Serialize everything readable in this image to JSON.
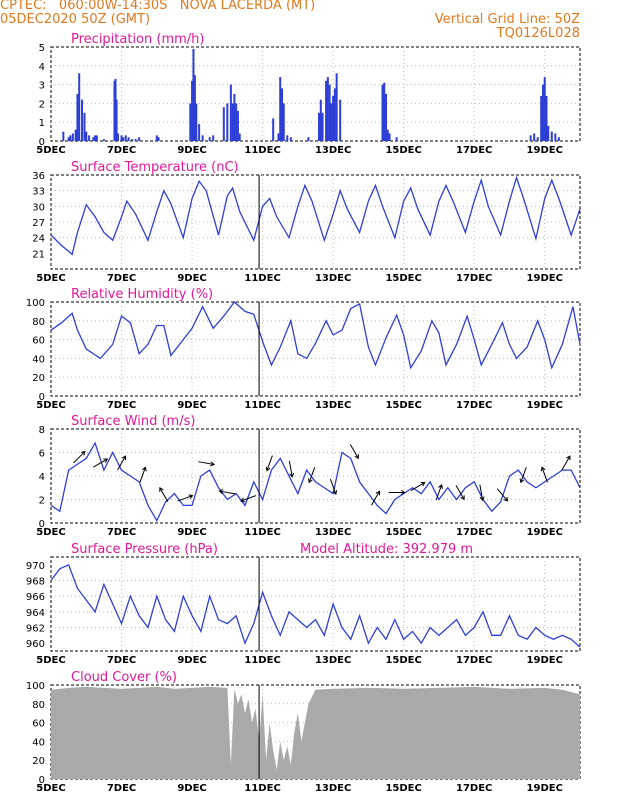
{
  "header": {
    "line1_left": "CPTEC:   060:00W-14:30S   NOVA LACERDA (MT)",
    "line2_left": "05DEC2020 50Z (GMT)",
    "line2_right": "Vertical Grid Line: 50Z",
    "line3_right": "TQ0126L028"
  },
  "colors": {
    "header": "#e07a1e",
    "title": "#e0199a",
    "series": "#2d3fd6",
    "cloud": "#a9a9a9"
  },
  "date_labels": [
    "5DEC",
    "7DEC",
    "9DEC",
    "11DEC",
    "13DEC",
    "15DEC",
    "17DEC",
    "19DEC"
  ],
  "chart_data": [
    {
      "id": "precip",
      "type": "bar",
      "title": "Precipitation (mm/h)",
      "ylim": [
        0,
        5
      ],
      "yticks": [
        "0",
        "1",
        "2",
        "3",
        "4",
        "5"
      ],
      "x_unit": "days since 5DEC 00Z",
      "x": [
        0.35,
        0.5,
        0.55,
        0.62,
        0.7,
        0.75,
        0.8,
        0.88,
        0.95,
        1.0,
        1.08,
        1.2,
        1.25,
        1.3,
        1.5,
        1.8,
        1.83,
        1.86,
        1.9,
        2.0,
        2.05,
        2.12,
        2.2,
        2.3,
        2.4,
        2.5,
        3.0,
        3.05,
        3.95,
        4.0,
        4.04,
        4.08,
        4.12,
        4.2,
        4.3,
        4.5,
        4.6,
        4.9,
        5.0,
        5.1,
        5.15,
        5.2,
        5.25,
        5.3,
        5.35,
        6.3,
        6.45,
        6.5,
        6.55,
        6.6,
        6.7,
        6.8,
        7.3,
        7.6,
        7.65,
        7.7,
        7.8,
        7.85,
        7.9,
        7.95,
        8.0,
        8.05,
        8.1,
        8.2,
        9.4,
        9.45,
        9.5,
        9.55,
        9.6,
        9.8,
        13.6,
        13.7,
        13.8,
        13.9,
        13.95,
        14.0,
        14.05,
        14.1,
        14.2,
        14.3,
        14.4
      ],
      "values": [
        0.5,
        0.2,
        0.3,
        0.4,
        0.6,
        2.5,
        3.6,
        2.2,
        1.5,
        0.5,
        0.3,
        0.2,
        0.3,
        0.3,
        0.1,
        3.2,
        3.3,
        2.2,
        0.4,
        0.3,
        0.2,
        0.3,
        0.2,
        0.1,
        0.1,
        0.2,
        0.3,
        0.2,
        2.0,
        3.2,
        4.9,
        3.5,
        2.0,
        0.9,
        0.3,
        0.2,
        0.3,
        1.8,
        2.0,
        3.0,
        2.0,
        2.5,
        2.0,
        1.6,
        0.4,
        1.2,
        0.4,
        3.4,
        2.8,
        2.0,
        0.3,
        0.2,
        0.2,
        1.5,
        2.2,
        1.5,
        3.2,
        3.4,
        3.0,
        2.0,
        2.4,
        2.8,
        3.6,
        2.2,
        3.0,
        3.1,
        2.5,
        0.6,
        0.4,
        0.2,
        0.3,
        0.4,
        0.2,
        2.4,
        3.0,
        3.4,
        2.4,
        0.8,
        0.5,
        0.4,
        0.2
      ]
    },
    {
      "id": "temp",
      "type": "line",
      "title": "Surface Temperature (nC)",
      "ylim": [
        18,
        36
      ],
      "yticks": [
        "21",
        "24",
        "27",
        "30",
        "33",
        "36"
      ],
      "x": [
        0,
        0.3,
        0.6,
        0.75,
        1.0,
        1.25,
        1.5,
        1.75,
        2.0,
        2.15,
        2.4,
        2.75,
        3.0,
        3.2,
        3.4,
        3.75,
        4.0,
        4.2,
        4.4,
        4.75,
        5.0,
        5.15,
        5.35,
        5.75,
        6.0,
        6.2,
        6.4,
        6.75,
        7.0,
        7.2,
        7.4,
        7.75,
        8.0,
        8.2,
        8.4,
        8.75,
        9.0,
        9.2,
        9.4,
        9.75,
        10.0,
        10.2,
        10.4,
        10.75,
        11.0,
        11.2,
        11.4,
        11.75,
        12.0,
        12.2,
        12.4,
        12.75,
        13.0,
        13.2,
        13.4,
        13.75,
        14.0,
        14.2,
        14.4,
        14.75,
        15.0
      ],
      "values": [
        24.5,
        22.5,
        20.8,
        25.0,
        30.3,
        28.0,
        25.0,
        23.5,
        28.0,
        31.0,
        28.5,
        23.5,
        29.0,
        33.0,
        30.5,
        24.0,
        31.5,
        34.8,
        33.0,
        24.5,
        32.0,
        33.5,
        29.0,
        23.5,
        30.0,
        31.5,
        28.0,
        24.0,
        30.0,
        34.0,
        31.0,
        23.5,
        28.5,
        33.0,
        29.5,
        25.0,
        31.0,
        34.0,
        30.0,
        24.0,
        31.0,
        33.5,
        29.5,
        24.5,
        31.0,
        34.0,
        31.0,
        25.0,
        31.0,
        35.0,
        30.0,
        24.5,
        31.0,
        35.5,
        31.5,
        23.8,
        31.5,
        35.0,
        31.5,
        24.5,
        29.5
      ]
    },
    {
      "id": "rh",
      "type": "line",
      "title": "Relative Humidity (%)",
      "ylim": [
        0,
        100
      ],
      "yticks": [
        "0",
        "20",
        "40",
        "60",
        "80",
        "100"
      ],
      "x": [
        0,
        0.3,
        0.6,
        0.75,
        1.0,
        1.4,
        1.75,
        2.0,
        2.25,
        2.5,
        2.75,
        3.0,
        3.2,
        3.4,
        3.75,
        4.0,
        4.3,
        4.6,
        4.9,
        5.2,
        5.5,
        5.75,
        6.0,
        6.25,
        6.5,
        6.8,
        7.0,
        7.25,
        7.5,
        7.8,
        8.0,
        8.25,
        8.5,
        8.75,
        9.0,
        9.2,
        9.5,
        9.8,
        10.0,
        10.2,
        10.5,
        10.8,
        11.0,
        11.2,
        11.5,
        11.8,
        12.0,
        12.2,
        12.5,
        12.8,
        13.0,
        13.2,
        13.5,
        13.8,
        14.0,
        14.2,
        14.5,
        14.8,
        15.0
      ],
      "values": [
        70,
        78,
        88,
        70,
        50,
        40,
        55,
        85,
        78,
        45,
        55,
        75,
        75,
        43,
        60,
        72,
        95,
        72,
        85,
        100,
        90,
        87,
        58,
        33,
        52,
        80,
        45,
        40,
        56,
        80,
        65,
        70,
        93,
        98,
        52,
        33,
        62,
        86,
        65,
        30,
        48,
        80,
        67,
        33,
        55,
        85,
        60,
        33,
        55,
        78,
        55,
        40,
        52,
        80,
        60,
        30,
        55,
        95,
        55
      ]
    },
    {
      "id": "wind",
      "type": "line",
      "title": "Surface Wind (m/s)",
      "ylim": [
        0,
        8
      ],
      "yticks": [
        "0",
        "2",
        "4",
        "6",
        "8"
      ],
      "x": [
        0,
        0.25,
        0.5,
        0.75,
        1.0,
        1.25,
        1.5,
        1.75,
        2.0,
        2.25,
        2.5,
        2.75,
        3.0,
        3.25,
        3.5,
        3.75,
        4.0,
        4.25,
        4.5,
        4.75,
        5.0,
        5.25,
        5.5,
        5.75,
        6.0,
        6.25,
        6.5,
        6.75,
        7.0,
        7.25,
        7.5,
        7.75,
        8.0,
        8.25,
        8.5,
        8.75,
        9.0,
        9.25,
        9.5,
        9.75,
        10.0,
        10.25,
        10.5,
        10.75,
        11.0,
        11.25,
        11.5,
        11.75,
        12.0,
        12.25,
        12.5,
        12.75,
        13.0,
        13.25,
        13.5,
        13.75,
        14.0,
        14.25,
        14.5,
        14.75,
        15.0
      ],
      "values": [
        1.5,
        1.0,
        4.5,
        5.0,
        5.5,
        6.8,
        4.5,
        6.0,
        4.5,
        4.0,
        3.5,
        1.5,
        0.2,
        1.8,
        2.5,
        1.5,
        1.5,
        4.0,
        4.5,
        3.0,
        2.0,
        2.5,
        1.5,
        3.5,
        2.0,
        4.5,
        5.5,
        4.0,
        2.5,
        4.5,
        3.5,
        3.0,
        2.5,
        6.0,
        5.5,
        3.5,
        2.5,
        1.5,
        0.8,
        2.0,
        2.5,
        3.0,
        2.5,
        3.5,
        2.0,
        3.0,
        2.0,
        3.0,
        3.5,
        2.0,
        1.0,
        1.8,
        4.0,
        4.5,
        3.5,
        3.0,
        3.5,
        4.0,
        4.5,
        4.5,
        3.0
      ],
      "arrows_deg": [
        45,
        60,
        30,
        20,
        330,
        70,
        100,
        280,
        250,
        200,
        170,
        200,
        160,
        150,
        30,
        90,
        60,
        20,
        150,
        170,
        140,
        200,
        340,
        30
      ]
    },
    {
      "id": "pres",
      "type": "line",
      "title": "Surface Pressure (hPa)",
      "subtitle": "Model Altitude: 392.979  m",
      "ylim": [
        959,
        971
      ],
      "yticks": [
        "960",
        "962",
        "964",
        "966",
        "968",
        "970"
      ],
      "x": [
        0,
        0.25,
        0.5,
        0.75,
        1.0,
        1.25,
        1.5,
        1.75,
        2.0,
        2.25,
        2.5,
        2.75,
        3.0,
        3.25,
        3.5,
        3.75,
        4.0,
        4.25,
        4.5,
        4.75,
        5.0,
        5.25,
        5.5,
        5.75,
        6.0,
        6.25,
        6.5,
        6.75,
        7.0,
        7.25,
        7.5,
        7.75,
        8.0,
        8.25,
        8.5,
        8.75,
        9.0,
        9.25,
        9.5,
        9.75,
        10.0,
        10.25,
        10.5,
        10.75,
        11.0,
        11.25,
        11.5,
        11.75,
        12.0,
        12.25,
        12.5,
        12.75,
        13.0,
        13.25,
        13.5,
        13.75,
        14.0,
        14.25,
        14.5,
        14.75,
        15.0
      ],
      "values": [
        968.0,
        969.5,
        970.0,
        967.0,
        965.5,
        964.0,
        967.5,
        965.0,
        962.5,
        966.0,
        963.5,
        962.0,
        966.0,
        963.0,
        961.5,
        966.0,
        963.5,
        961.5,
        966.0,
        963.0,
        962.5,
        963.5,
        960.0,
        962.5,
        966.5,
        963.5,
        961.0,
        964.0,
        963.0,
        962.0,
        963.0,
        961.0,
        965.0,
        962.0,
        960.5,
        963.5,
        960.0,
        962.0,
        960.5,
        963.0,
        960.5,
        961.5,
        960.0,
        962.0,
        961.0,
        962.0,
        963.0,
        961.0,
        962.0,
        964.0,
        961.0,
        961.0,
        963.5,
        961.0,
        960.5,
        962.0,
        961.0,
        960.5,
        961.0,
        960.5,
        959.5
      ]
    },
    {
      "id": "cloud",
      "type": "area",
      "title": "Cloud Cover (%)",
      "ylim": [
        0,
        100
      ],
      "yticks": [
        "0",
        "20",
        "40",
        "60",
        "80",
        "100"
      ],
      "x": [
        0,
        0.5,
        1.0,
        1.5,
        2.0,
        2.5,
        3.0,
        3.5,
        4.0,
        4.5,
        5.0,
        5.1,
        5.2,
        5.3,
        5.4,
        5.5,
        5.6,
        5.7,
        5.8,
        5.9,
        6.0,
        6.1,
        6.2,
        6.3,
        6.4,
        6.5,
        6.6,
        6.7,
        6.8,
        6.9,
        7.0,
        7.1,
        7.2,
        7.3,
        7.5,
        8.0,
        9.0,
        10.0,
        11.0,
        12.0,
        13.0,
        14.0,
        14.5,
        15.0
      ],
      "values": [
        95,
        97,
        98,
        97,
        96,
        97,
        98,
        96,
        97,
        98,
        97,
        15,
        96,
        80,
        90,
        70,
        85,
        60,
        75,
        40,
        90,
        20,
        60,
        30,
        10,
        40,
        20,
        35,
        15,
        50,
        70,
        40,
        60,
        80,
        95,
        96,
        97,
        96,
        97,
        98,
        96,
        97,
        95,
        90
      ]
    }
  ]
}
